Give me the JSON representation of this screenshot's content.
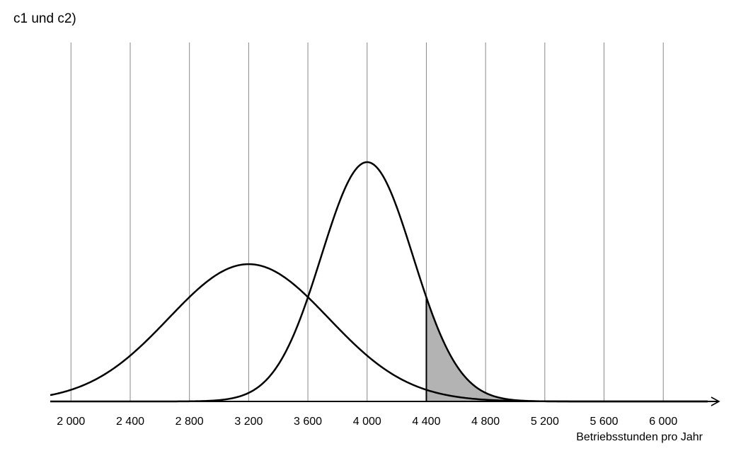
{
  "heading": "c1 und c2)",
  "chart_data": {
    "type": "line",
    "title": "",
    "xlabel": "Betriebsstunden pro Jahr",
    "ylabel": "",
    "xlim": [
      1860,
      6300
    ],
    "x_ticks": [
      2000,
      2400,
      2800,
      3200,
      3600,
      4000,
      4400,
      4800,
      5200,
      5600,
      6000
    ],
    "x_tick_labels": [
      "2 000",
      "2 400",
      "2 800",
      "3 200",
      "3 600",
      "4 000",
      "4 400",
      "4 800",
      "5 200",
      "5 600",
      "6 000"
    ],
    "grid": "vertical",
    "y_axis_shown": false,
    "series": [
      {
        "distribution": "normal",
        "mean": 3200,
        "sd": 540,
        "peak_density": 0.00074
      },
      {
        "distribution": "normal",
        "mean": 4000,
        "sd": 310,
        "peak_density": 0.00129
      }
    ],
    "shaded_region": {
      "series_index": 1,
      "x_from": 4400,
      "x_to": 6300,
      "color": "#b3b3b3"
    },
    "colors": {
      "curve": "#000000",
      "grid": "#888888",
      "shade": "#b3b3b3"
    }
  }
}
